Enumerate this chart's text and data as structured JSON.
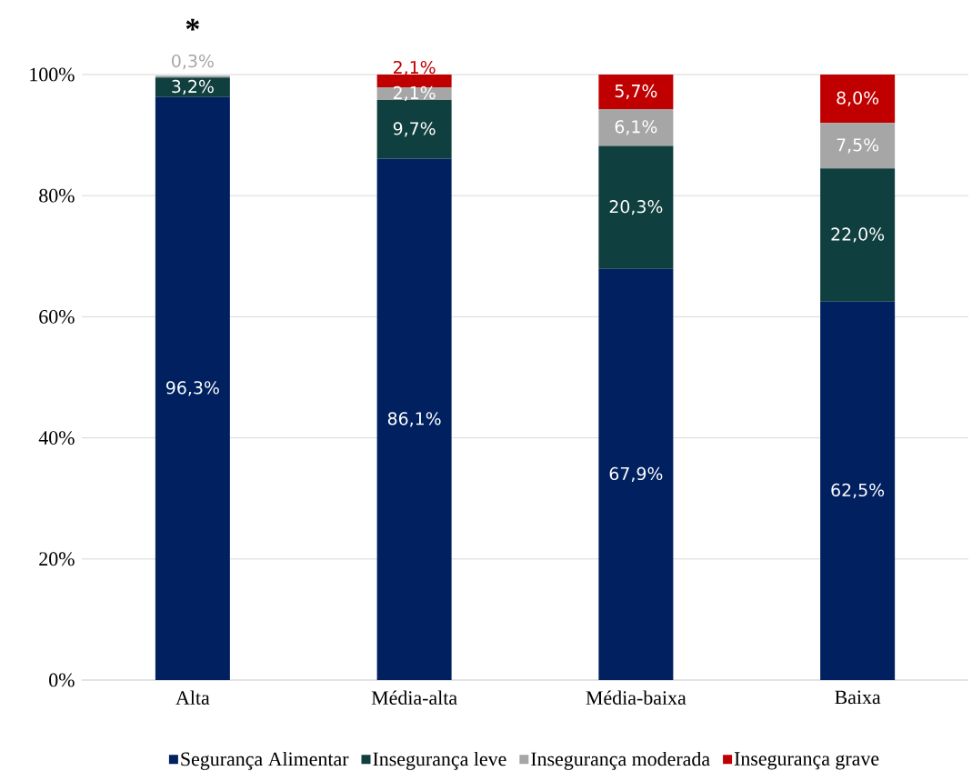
{
  "chart_data": {
    "type": "bar",
    "stacked": true,
    "categories": [
      "Alta",
      "Média-alta",
      "Média-baixa",
      "Baixa"
    ],
    "series": [
      {
        "name": "Segurança Alimentar",
        "color": "#002060",
        "values": [
          96.3,
          86.1,
          67.9,
          62.5
        ],
        "value_labels": [
          "96,3%",
          "86,1%",
          "67,9%",
          "62,5%"
        ]
      },
      {
        "name": "Insegurança leve",
        "color": "#0f3f3e",
        "values": [
          3.2,
          9.7,
          20.3,
          22.0
        ],
        "value_labels": [
          "3,2%",
          "9,7%",
          "20,3%",
          "22,0%"
        ]
      },
      {
        "name": "Insegurança moderada",
        "color": "#a6a6a6",
        "values": [
          0.3,
          2.1,
          6.1,
          7.5
        ],
        "value_labels": [
          "0,3%",
          "2,1%",
          "6,1%",
          "7,5%"
        ]
      },
      {
        "name": "Insegurança grave",
        "color": "#c00000",
        "values": [
          0,
          2.1,
          5.7,
          8.0
        ],
        "value_labels": [
          null,
          "2,1%",
          "5,7%",
          "8,0%"
        ]
      }
    ],
    "ylim": [
      0,
      100
    ],
    "yticks": [
      {
        "value": 0,
        "label": "0%"
      },
      {
        "value": 20,
        "label": "20%"
      },
      {
        "value": 40,
        "label": "40%"
      },
      {
        "value": 60,
        "label": "60%"
      },
      {
        "value": 80,
        "label": "80%"
      },
      {
        "value": 100,
        "label": "100%"
      }
    ],
    "grid": "y",
    "legend": "bottom",
    "annotations": [
      "*"
    ]
  }
}
